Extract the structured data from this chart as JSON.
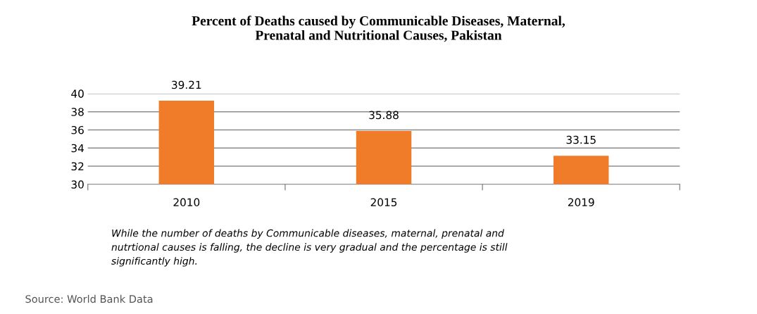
{
  "chart_data": {
    "type": "bar",
    "title": "Percent of Deaths caused by Communicable Diseases, Maternal,\nPrenatal and Nutritional Causes, Pakistan",
    "categories": [
      "2010",
      "2015",
      "2019"
    ],
    "values": [
      39.21,
      35.88,
      33.15
    ],
    "color": "#f07c2a",
    "ylim": [
      30,
      40
    ],
    "yticks": [
      30,
      32,
      34,
      36,
      38,
      40
    ],
    "grid": "y",
    "data_labels": true,
    "annotations": [
      "While the number of deaths by Communicable diseases, maternal, prenatal and\nnutrtional causes is falling, the decline is very gradual and the percentage is still\nsignificantly high.",
      "Source: World Bank Data"
    ]
  }
}
